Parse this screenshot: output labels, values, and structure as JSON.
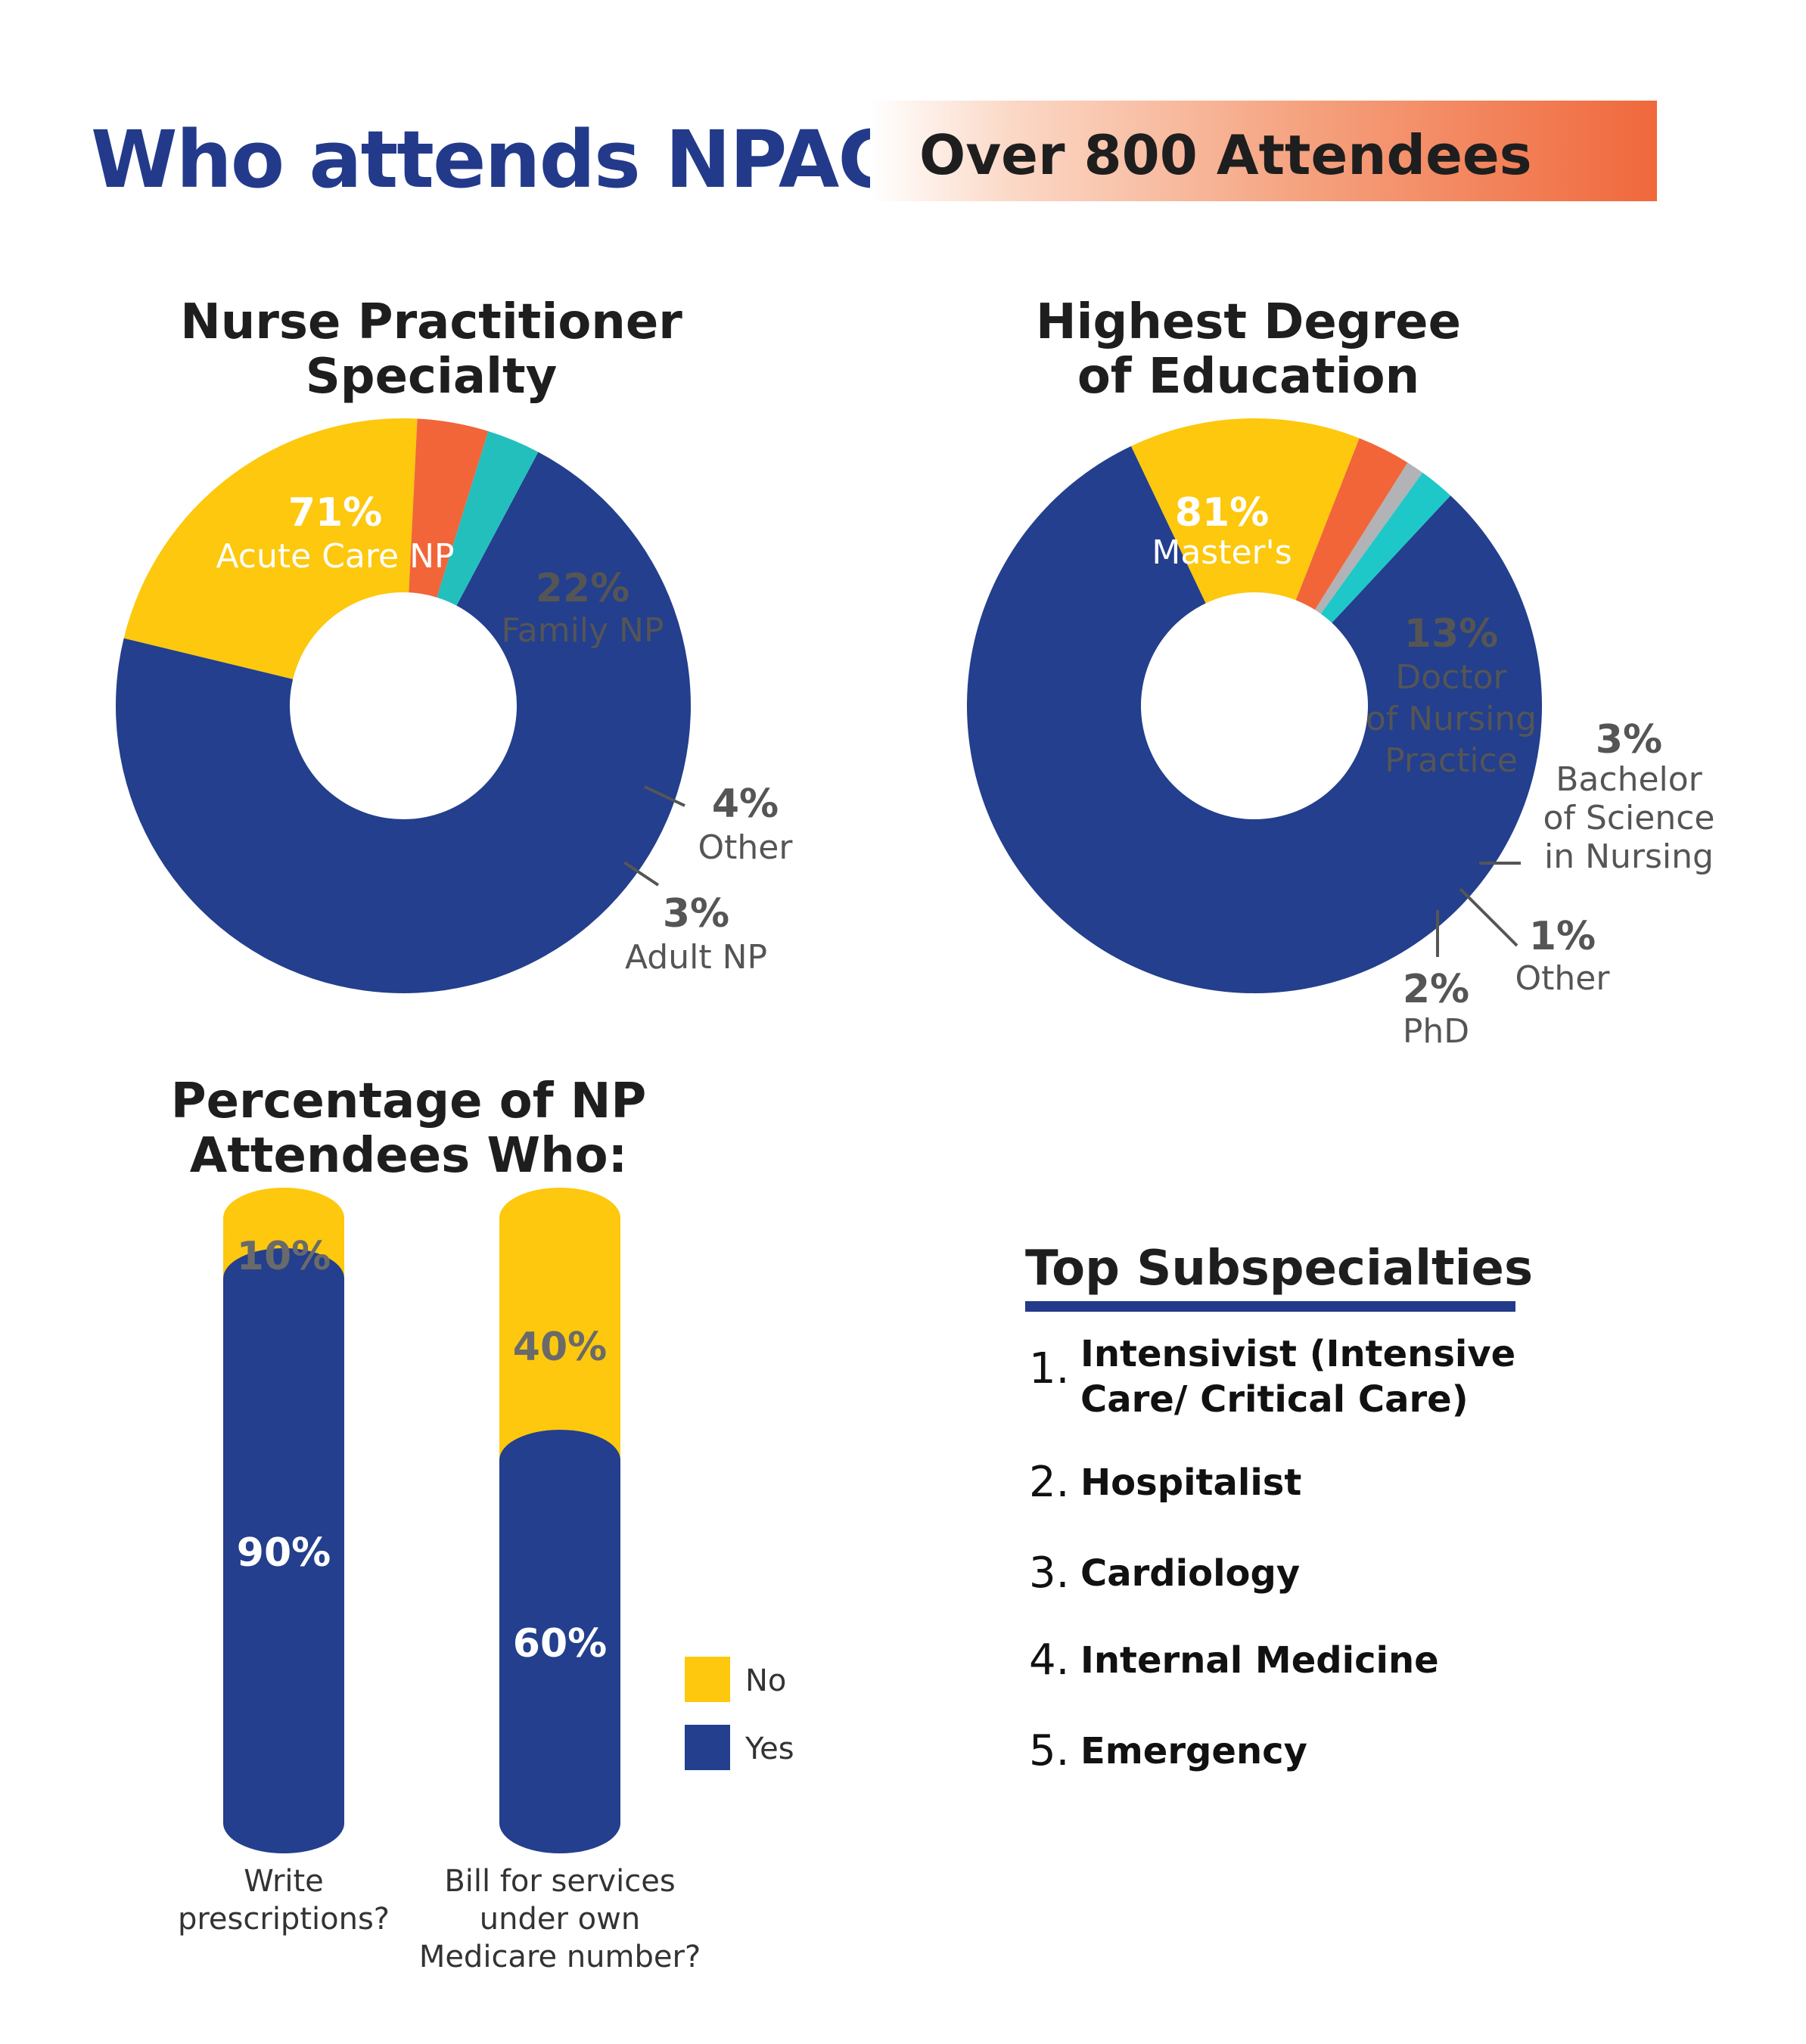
{
  "header": {
    "title": "Who attends NPAC?",
    "banner": "Over 800 Attendees"
  },
  "chart_data": [
    {
      "type": "pie",
      "title": "Nurse Practitioner Specialty",
      "slices": [
        {
          "label": "Acute Care NP",
          "value": 71,
          "pct_label": "71%",
          "color": "#233f8d"
        },
        {
          "label": "Family NP",
          "value": 22,
          "pct_label": "22%",
          "color": "#fdc80d"
        },
        {
          "label": "Other",
          "value": 4,
          "pct_label": "4%",
          "color": "#f16539"
        },
        {
          "label": "Adult NP",
          "value": 3,
          "pct_label": "3%",
          "color": "#22bfbd"
        }
      ]
    },
    {
      "type": "pie",
      "title": "Highest Degree of Education",
      "slices": [
        {
          "label": "Master's",
          "value": 81,
          "pct_label": "81%",
          "color": "#233f8d"
        },
        {
          "label": "Doctor of Nursing Practice",
          "value": 13,
          "pct_label": "13%",
          "color": "#fdc80d"
        },
        {
          "label": "Bachelor of Science in Nursing",
          "value": 3,
          "pct_label": "3%",
          "color": "#f16539"
        },
        {
          "label": "Other",
          "value": 1,
          "pct_label": "1%",
          "color": "#b1b3b6"
        },
        {
          "label": "PhD",
          "value": 2,
          "pct_label": "2%",
          "color": "#1ec8c8"
        }
      ]
    },
    {
      "type": "bar",
      "stacked": true,
      "title": "Percentage of NP Attendees Who:",
      "categories": [
        "Write prescriptions?",
        "Bill for services under own Medicare number?"
      ],
      "series": [
        {
          "name": "Yes",
          "values": [
            90,
            60
          ],
          "labels": [
            "90%",
            "60%"
          ],
          "color": "#233f8d"
        },
        {
          "name": "No",
          "values": [
            10,
            40
          ],
          "labels": [
            "10%",
            "40%"
          ],
          "color": "#fdc80d"
        }
      ],
      "legend": {
        "placement": "right",
        "entries": [
          "No",
          "Yes"
        ]
      }
    }
  ],
  "subspecialties": {
    "title": "Top Subspecialties",
    "items": [
      {
        "num": "1.",
        "text": "Intensivist (Intensive Care/ Critical Care)"
      },
      {
        "num": "2.",
        "text": "Hospitalist"
      },
      {
        "num": "3.",
        "text": "Cardiology"
      },
      {
        "num": "4.",
        "text": "Internal Medicine"
      },
      {
        "num": "5.",
        "text": "Emergency"
      }
    ]
  }
}
